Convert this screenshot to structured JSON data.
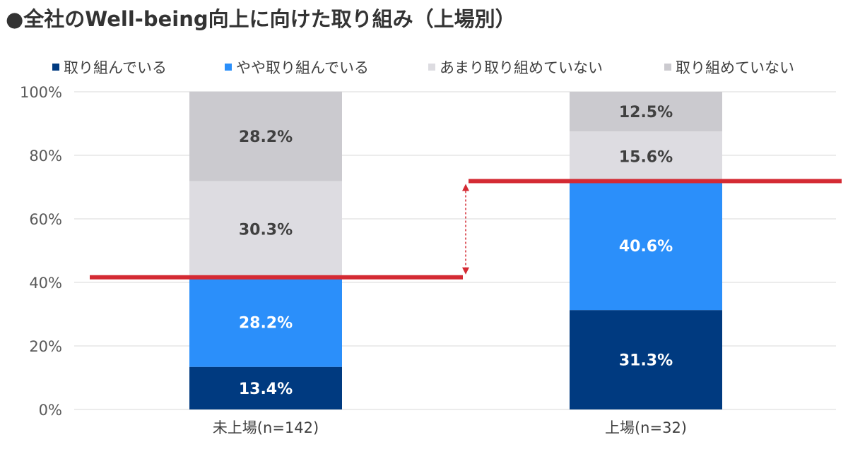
{
  "title": "●全社のWell-being向上に向けた取り組み（上場別）",
  "colors": {
    "series": [
      "#003A80",
      "#2B8FFA",
      "#DDDCE1",
      "#CBCACF"
    ],
    "label_on_dark": "#FFFFFF",
    "label_on_light": "#404040",
    "marker": "#D42A33",
    "grid": "#D9D9D9"
  },
  "chart_data": {
    "type": "bar",
    "stacked": true,
    "title": "●全社のWell-being向上に向けた取り組み（上場別）",
    "categories": [
      "未上場(n=142)",
      "上場(n=32)"
    ],
    "series": [
      {
        "name": "取り組んでいる",
        "values": [
          13.4,
          31.3
        ]
      },
      {
        "name": "やや取り組んでいる",
        "values": [
          28.2,
          40.6
        ]
      },
      {
        "name": "あまり取り組めていない",
        "values": [
          30.3,
          15.6
        ]
      },
      {
        "name": "取り組めていない",
        "values": [
          28.2,
          12.5
        ]
      }
    ],
    "ylim": [
      0,
      100
    ],
    "yticks": [
      "0%",
      "20%",
      "40%",
      "60%",
      "80%",
      "100%"
    ],
    "grid": true,
    "legend_position": "top",
    "annotations": [
      {
        "type": "reference-line",
        "category": "未上場(n=142)",
        "value": 41.6
      },
      {
        "type": "reference-line",
        "category": "上場(n=32)",
        "value": 71.9
      },
      {
        "type": "double-arrow",
        "from": 41.6,
        "to": 71.9
      }
    ]
  }
}
